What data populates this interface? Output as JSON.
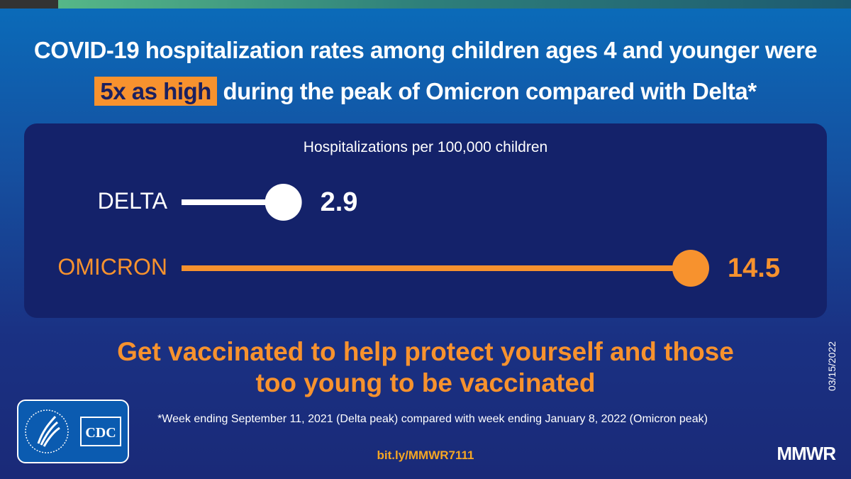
{
  "title": {
    "line1": "COVID-19 hospitalization rates among children ages 4 and younger were",
    "highlight": "5x as high",
    "line2_rest": " during the peak of Omicron compared with Delta*"
  },
  "chart_data": {
    "type": "lollipop",
    "title": "Hospitalizations per 100,000 children",
    "categories": [
      "DELTA",
      "OMICRON"
    ],
    "values": [
      2.9,
      14.5
    ],
    "value_labels": [
      "2.9",
      "14.5"
    ],
    "colors": [
      "#ffffff",
      "#f7922e"
    ],
    "xlim": [
      0,
      14.5
    ]
  },
  "cta": {
    "line1": "Get vaccinated to help protect yourself and those",
    "line2": "too young to be vaccinated"
  },
  "footnote": "*Week ending September 11, 2021 (Delta peak) compared with week ending January 8, 2022 (Omicron peak)",
  "link": "bit.ly/MMWR7111",
  "date": "03/15/2022",
  "logo_text": "CDC",
  "brand": "MMWR"
}
